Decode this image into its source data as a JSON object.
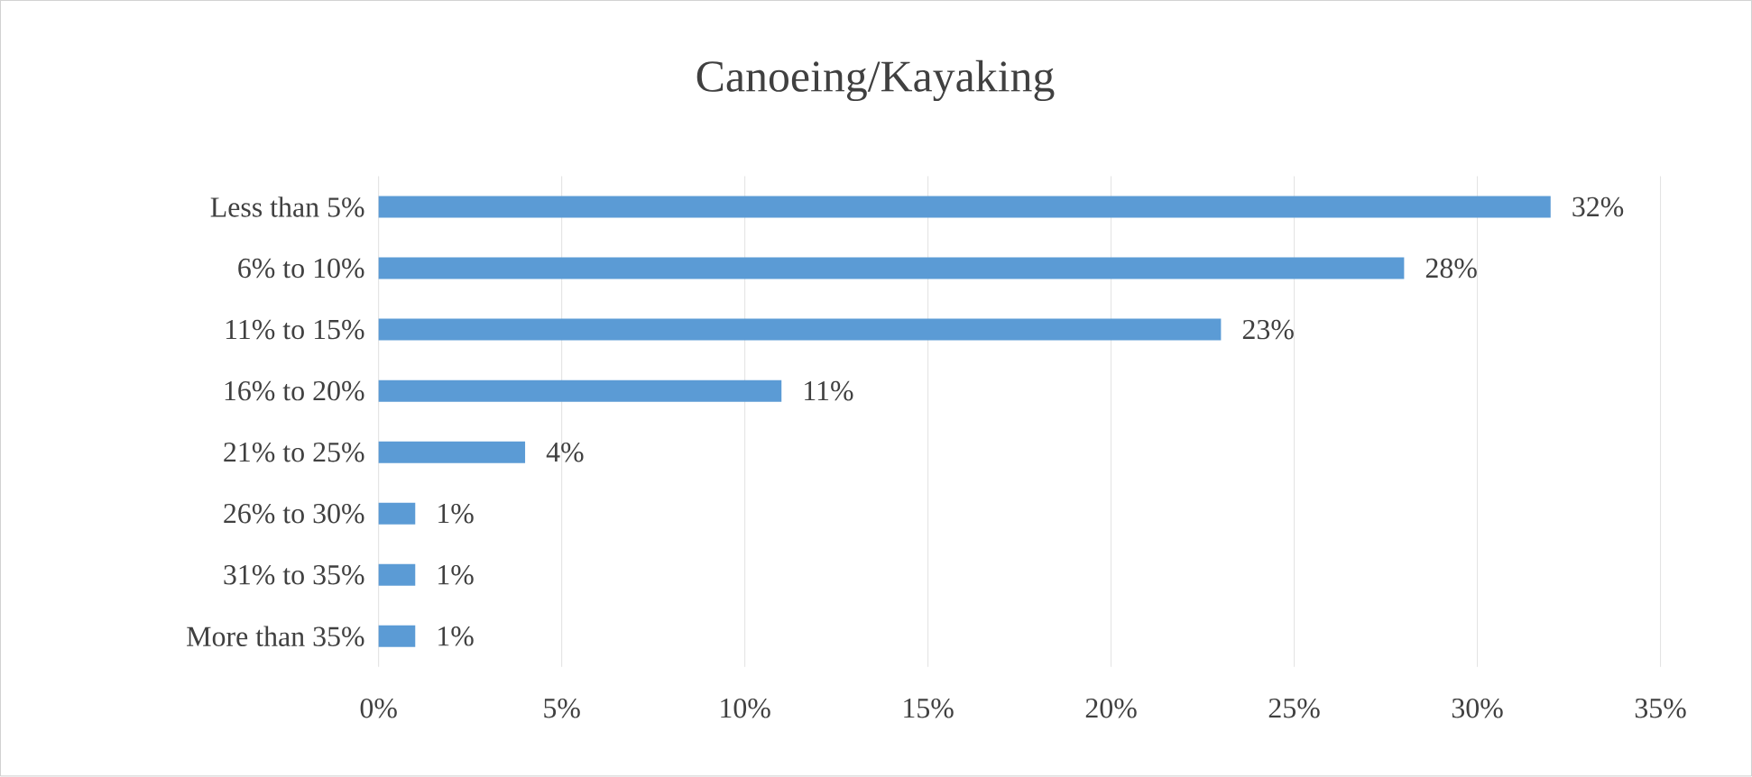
{
  "chart_data": {
    "type": "bar",
    "orientation": "horizontal",
    "title": "Canoeing/Kayaking",
    "categories": [
      "Less than 5%",
      "6% to 10%",
      "11% to 15%",
      "16% to 20%",
      "21% to 25%",
      "26% to 30%",
      "31% to 35%",
      "More than 35%"
    ],
    "values": [
      32,
      28,
      23,
      11,
      4,
      1,
      1,
      1
    ],
    "value_labels": [
      "32%",
      "28%",
      "23%",
      "11%",
      "4%",
      "1%",
      "1%",
      "1%"
    ],
    "color": "#5b9bd5",
    "xlim": [
      0,
      35
    ],
    "xticks": [
      {
        "value": 0,
        "label": "0%"
      },
      {
        "value": 5,
        "label": "5%"
      },
      {
        "value": 10,
        "label": "10%"
      },
      {
        "value": 15,
        "label": "15%"
      },
      {
        "value": 20,
        "label": "20%"
      },
      {
        "value": 25,
        "label": "25%"
      },
      {
        "value": 30,
        "label": "30%"
      },
      {
        "value": 35,
        "label": "35%"
      }
    ],
    "grid": "x"
  }
}
